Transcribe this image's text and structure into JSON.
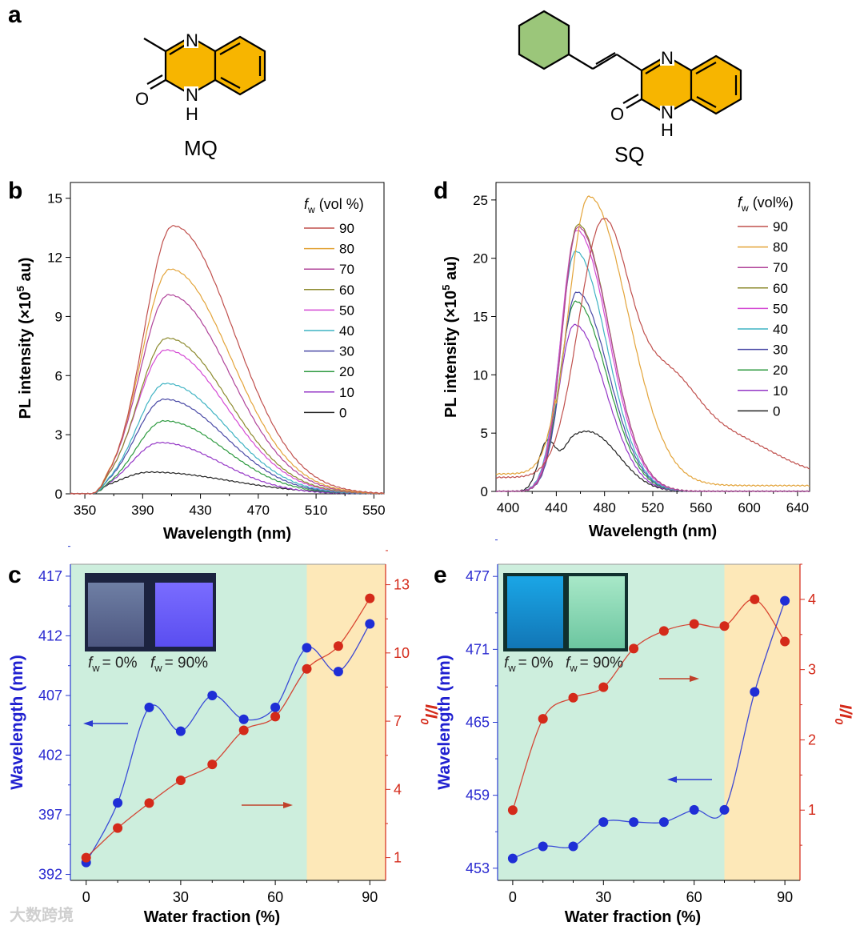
{
  "panels": {
    "a": "a",
    "b": "b",
    "c": "c",
    "d": "d",
    "e": "e"
  },
  "molecules": {
    "mq": {
      "name": "MQ",
      "atoms": {
        "n": "N",
        "o": "O",
        "nh_n": "N",
        "nh_h": "H"
      },
      "ring_color": "#f7b500"
    },
    "sq": {
      "name": "SQ",
      "atoms": {
        "n": "N",
        "o": "O",
        "nh_n": "N",
        "nh_h": "H"
      },
      "ring_color": "#f7b500",
      "phenyl_color": "#9bc67a"
    }
  },
  "inset_labels": {
    "fw0": "= 0%",
    "fw90": "= 90%",
    "f": "f",
    "w": "w"
  },
  "chart_data": [
    {
      "id": "b",
      "type": "line",
      "xlabel": "Wavelength (nm)",
      "ylabel_main": "PL intensity (×10",
      "ylabel_sup": "5",
      "ylabel_end": " au)",
      "xlim": [
        340,
        557
      ],
      "ylim": [
        0,
        15.8
      ],
      "xticks": [
        350,
        390,
        430,
        470,
        510,
        550
      ],
      "yticks": [
        0,
        3,
        6,
        9,
        12,
        15
      ],
      "legend_title": "(vol %)",
      "legend_f": "f",
      "legend_w": "w",
      "legend_position": "top-right",
      "series": [
        {
          "name": "90",
          "color": "#c0504d",
          "peak_nm": 411,
          "peak": 13.6
        },
        {
          "name": "80",
          "color": "#e3a43a",
          "peak_nm": 409,
          "peak": 11.4
        },
        {
          "name": "70",
          "color": "#b0449a",
          "peak_nm": 408,
          "peak": 10.1
        },
        {
          "name": "60",
          "color": "#8c8a2e",
          "peak_nm": 407,
          "peak": 7.9
        },
        {
          "name": "50",
          "color": "#d44ad4",
          "peak_nm": 406,
          "peak": 7.3
        },
        {
          "name": "40",
          "color": "#3fb3c3",
          "peak_nm": 406,
          "peak": 5.6
        },
        {
          "name": "30",
          "color": "#4a4aa6",
          "peak_nm": 405,
          "peak": 4.8
        },
        {
          "name": "20",
          "color": "#2e9a40",
          "peak_nm": 405,
          "peak": 3.7
        },
        {
          "name": "10",
          "color": "#9436c6",
          "peak_nm": 402,
          "peak": 2.6
        },
        {
          "name": "0",
          "color": "#222222",
          "peak_nm": 395,
          "peak": 1.1
        }
      ]
    },
    {
      "id": "d",
      "type": "line",
      "xlabel": "Wavelength (nm)",
      "ylabel_main": "PL intensity (×10",
      "ylabel_sup": "5",
      "ylabel_end": " au)",
      "xlim": [
        390,
        650
      ],
      "ylim": [
        0,
        26.5
      ],
      "xticks": [
        400,
        440,
        480,
        520,
        560,
        600,
        640
      ],
      "yticks": [
        0,
        5,
        10,
        15,
        20,
        25
      ],
      "legend_title": "(vol%)",
      "legend_f": "f",
      "legend_w": "w",
      "legend_position": "top-right",
      "series": [
        {
          "name": "90",
          "color": "#c0504d",
          "peak_nm": 478,
          "peak": 21.2
        },
        {
          "name": "80",
          "color": "#e3a43a",
          "peak_nm": 467,
          "peak": 24.8
        },
        {
          "name": "70",
          "color": "#b0449a",
          "peak_nm": 458,
          "peak": 22.7
        },
        {
          "name": "60",
          "color": "#8c8a2e",
          "peak_nm": 458,
          "peak": 22.9
        },
        {
          "name": "50",
          "color": "#d44ad4",
          "peak_nm": 457,
          "peak": 22.4
        },
        {
          "name": "40",
          "color": "#3fb3c3",
          "peak_nm": 456,
          "peak": 20.6
        },
        {
          "name": "30",
          "color": "#4a4aa6",
          "peak_nm": 457,
          "peak": 17.1
        },
        {
          "name": "20",
          "color": "#2e9a40",
          "peak_nm": 456,
          "peak": 16.3
        },
        {
          "name": "10",
          "color": "#9436c6",
          "peak_nm": 455,
          "peak": 14.3
        },
        {
          "name": "0",
          "color": "#222222",
          "peak_nm": 455,
          "peak": 6.2
        }
      ]
    },
    {
      "id": "c",
      "type": "scatter",
      "xlabel": "Water fraction (%)",
      "ylabel_left": "Wavelength (nm)",
      "ylabel_right": "I/I",
      "ylabel_right_sub": "0",
      "x": [
        0,
        10,
        20,
        30,
        40,
        50,
        60,
        70,
        80,
        90
      ],
      "xlim": [
        -5,
        95
      ],
      "xticks": [
        0,
        30,
        60,
        90
      ],
      "ylim_left": [
        391.5,
        418
      ],
      "yticks_left": [
        392,
        397,
        402,
        407,
        412,
        417
      ],
      "ylim_right": [
        0,
        13.9
      ],
      "yticks_right": [
        1,
        4,
        7,
        10,
        13
      ],
      "shade_split": 70,
      "series": [
        {
          "name": "Wavelength",
          "axis": "left",
          "color": "#1f2ed6",
          "values": [
            393,
            398,
            406,
            404,
            407,
            405,
            406,
            411,
            409,
            413
          ]
        },
        {
          "name": "I/I0",
          "axis": "right",
          "color": "#d42a1a",
          "values": [
            1.0,
            2.3,
            3.4,
            4.4,
            5.1,
            6.6,
            7.2,
            9.3,
            10.3,
            12.4
          ]
        }
      ]
    },
    {
      "id": "e",
      "type": "scatter",
      "xlabel": "Water fraction (%)",
      "ylabel_left": "Wavelength (nm)",
      "ylabel_right": "I/I",
      "ylabel_right_sub": "0",
      "x": [
        0,
        10,
        20,
        30,
        40,
        50,
        60,
        70,
        80,
        90
      ],
      "xlim": [
        -5,
        95
      ],
      "xticks": [
        0,
        30,
        60,
        90
      ],
      "ylim_left": [
        452,
        478
      ],
      "yticks_left": [
        453,
        459,
        465,
        471,
        477
      ],
      "ylim_right": [
        0.0,
        4.5
      ],
      "yticks_right": [
        1,
        2,
        3,
        4
      ],
      "shade_split": 70,
      "series": [
        {
          "name": "Wavelength",
          "axis": "left",
          "color": "#1f2ed6",
          "values": [
            453.8,
            454.8,
            454.8,
            456.8,
            456.8,
            456.8,
            457.8,
            457.8,
            467.5,
            475.0
          ]
        },
        {
          "name": "I/I0",
          "axis": "right",
          "color": "#d42a1a",
          "values": [
            1.0,
            2.3,
            2.6,
            2.75,
            3.3,
            3.55,
            3.65,
            3.62,
            4.0,
            3.4
          ]
        }
      ]
    }
  ],
  "watermark": "大数跨境"
}
